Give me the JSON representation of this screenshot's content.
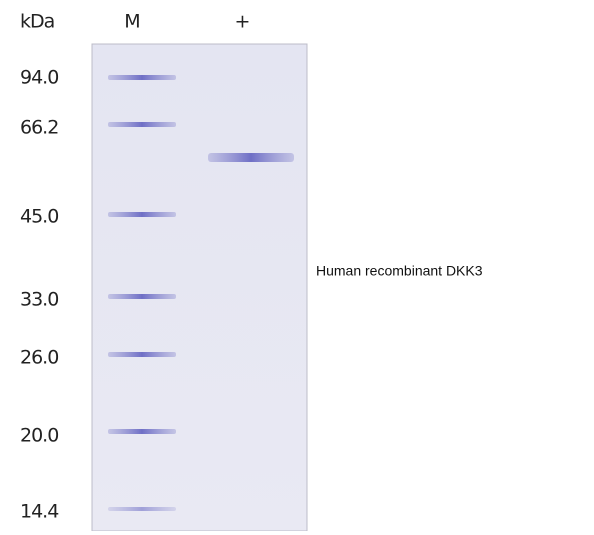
{
  "header": {
    "unit": "kDa",
    "lanes": [
      "M",
      "+"
    ]
  },
  "markers": [
    "94.0",
    "66.2",
    "45.0",
    "33.0",
    "26.0",
    "20.0",
    "14.4"
  ],
  "annotation": "Human recombinant DKK3"
}
